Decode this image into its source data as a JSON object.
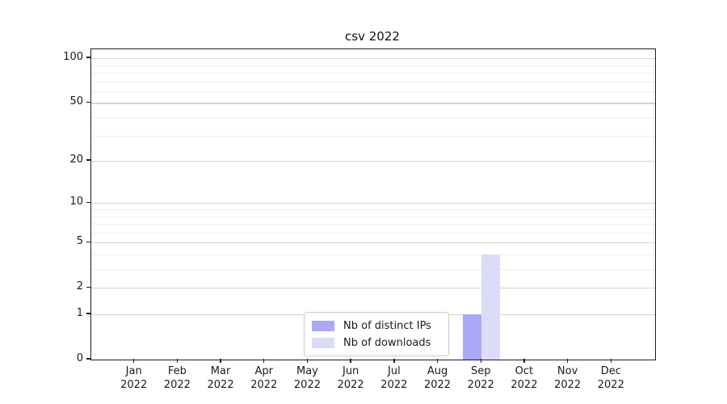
{
  "chart_data": {
    "type": "bar",
    "title": "csv 2022",
    "categories": [
      "Jan 2022",
      "Feb 2022",
      "Mar 2022",
      "Apr 2022",
      "May 2022",
      "Jun 2022",
      "Jul 2022",
      "Aug 2022",
      "Sep 2022",
      "Oct 2022",
      "Nov 2022",
      "Dec 2022"
    ],
    "series": [
      {
        "name": "Nb of distinct IPs",
        "color": "#a9a9f7",
        "values": [
          0,
          0,
          0,
          0,
          0,
          0,
          0,
          0,
          1,
          0,
          0,
          0
        ]
      },
      {
        "name": "Nb of downloads",
        "color": "#dcdcf9",
        "values": [
          0,
          0,
          0,
          0,
          0,
          0,
          0,
          0,
          4,
          0,
          0,
          0
        ]
      }
    ],
    "xlabel": "",
    "ylabel": "",
    "y_scale": "log1p",
    "ylim": [
      0,
      115
    ],
    "y_ticks": [
      0,
      1,
      2,
      5,
      10,
      20,
      50,
      100
    ],
    "y_minor_ticks": [
      3,
      4,
      6,
      7,
      8,
      9,
      30,
      40,
      60,
      70,
      80,
      90
    ],
    "grid": "horizontal",
    "legend_position": "lower center"
  }
}
